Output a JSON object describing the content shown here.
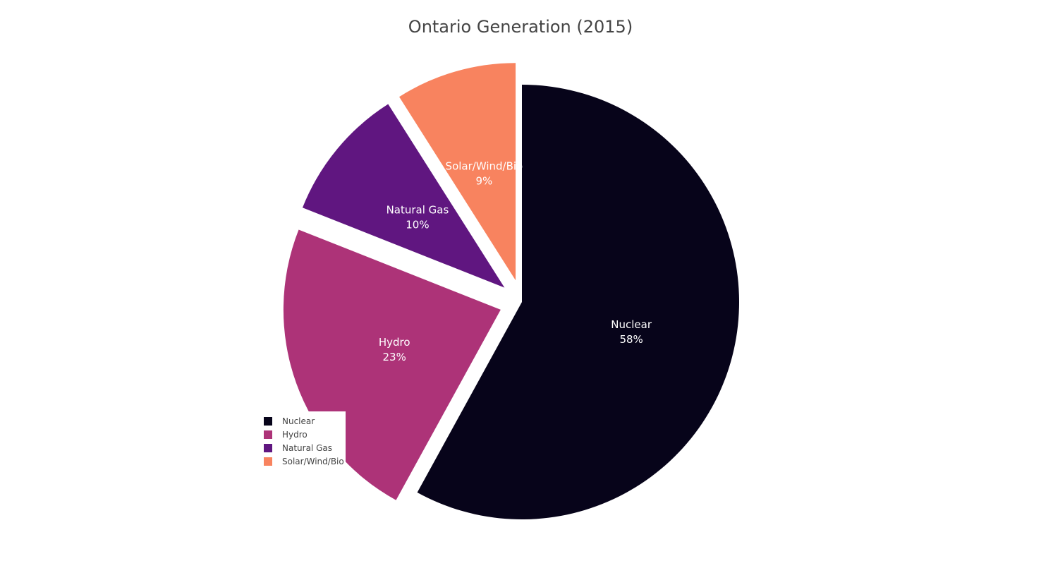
{
  "chart_data": {
    "type": "pie",
    "title": "Ontario Generation (2015)",
    "categories": [
      "Nuclear",
      "Hydro",
      "Natural Gas",
      "Solar/Wind/Bio"
    ],
    "values": [
      58,
      23,
      10,
      9
    ],
    "percent_labels": [
      "58%",
      "23%",
      "10%",
      "9%"
    ],
    "colors": [
      "#07041a",
      "#ad3378",
      "#601680",
      "#f8835f"
    ],
    "legend_position": "bottom-left",
    "pulled_out": [
      "Hydro",
      "Natural Gas",
      "Solar/Wind/Bio"
    ]
  }
}
